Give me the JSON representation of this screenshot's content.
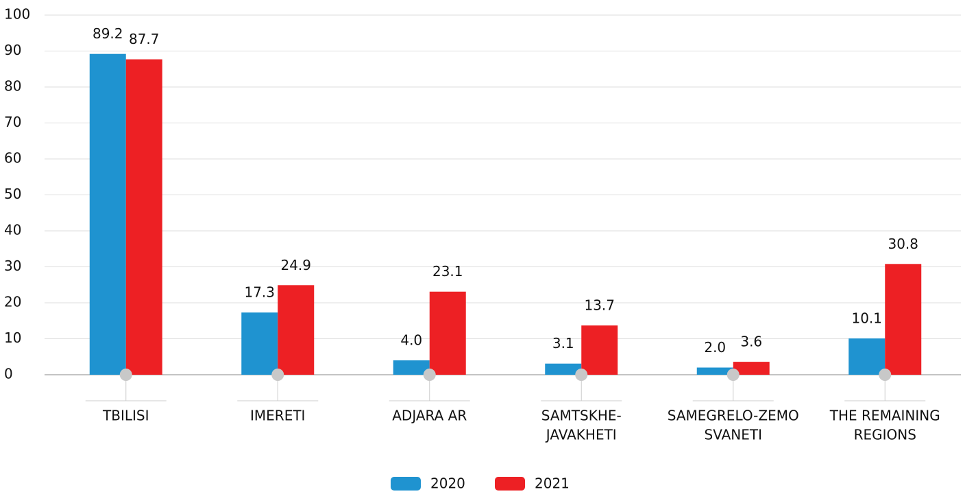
{
  "chart_data": {
    "type": "bar",
    "categories": [
      [
        "TBILISI"
      ],
      [
        "IMERETI"
      ],
      [
        "ADJARA AR"
      ],
      [
        "SAMTSKHE-",
        "JAVAKHETI"
      ],
      [
        "SAMEGRELO-ZEMO",
        "SVANETI"
      ],
      [
        "THE REMAINING",
        "REGIONS"
      ]
    ],
    "series": [
      {
        "name": "2020",
        "color": "#1f93d0",
        "values": [
          89.2,
          17.3,
          4.0,
          3.1,
          2.0,
          10.1
        ],
        "value_labels": [
          "89.2",
          "17.3",
          "4.0",
          "3.1",
          "2.0",
          "10.1"
        ]
      },
      {
        "name": "2021",
        "color": "#ed2024",
        "values": [
          87.7,
          24.9,
          23.1,
          13.7,
          3.6,
          30.8
        ],
        "value_labels": [
          "87.7",
          "24.9",
          "23.1",
          "13.7",
          "3.6",
          "30.8"
        ]
      }
    ],
    "ylim": [
      0,
      100
    ],
    "yticks": [
      0,
      10,
      20,
      30,
      40,
      50,
      60,
      70,
      80,
      90,
      100
    ],
    "grid": true,
    "legend": "bottom"
  }
}
